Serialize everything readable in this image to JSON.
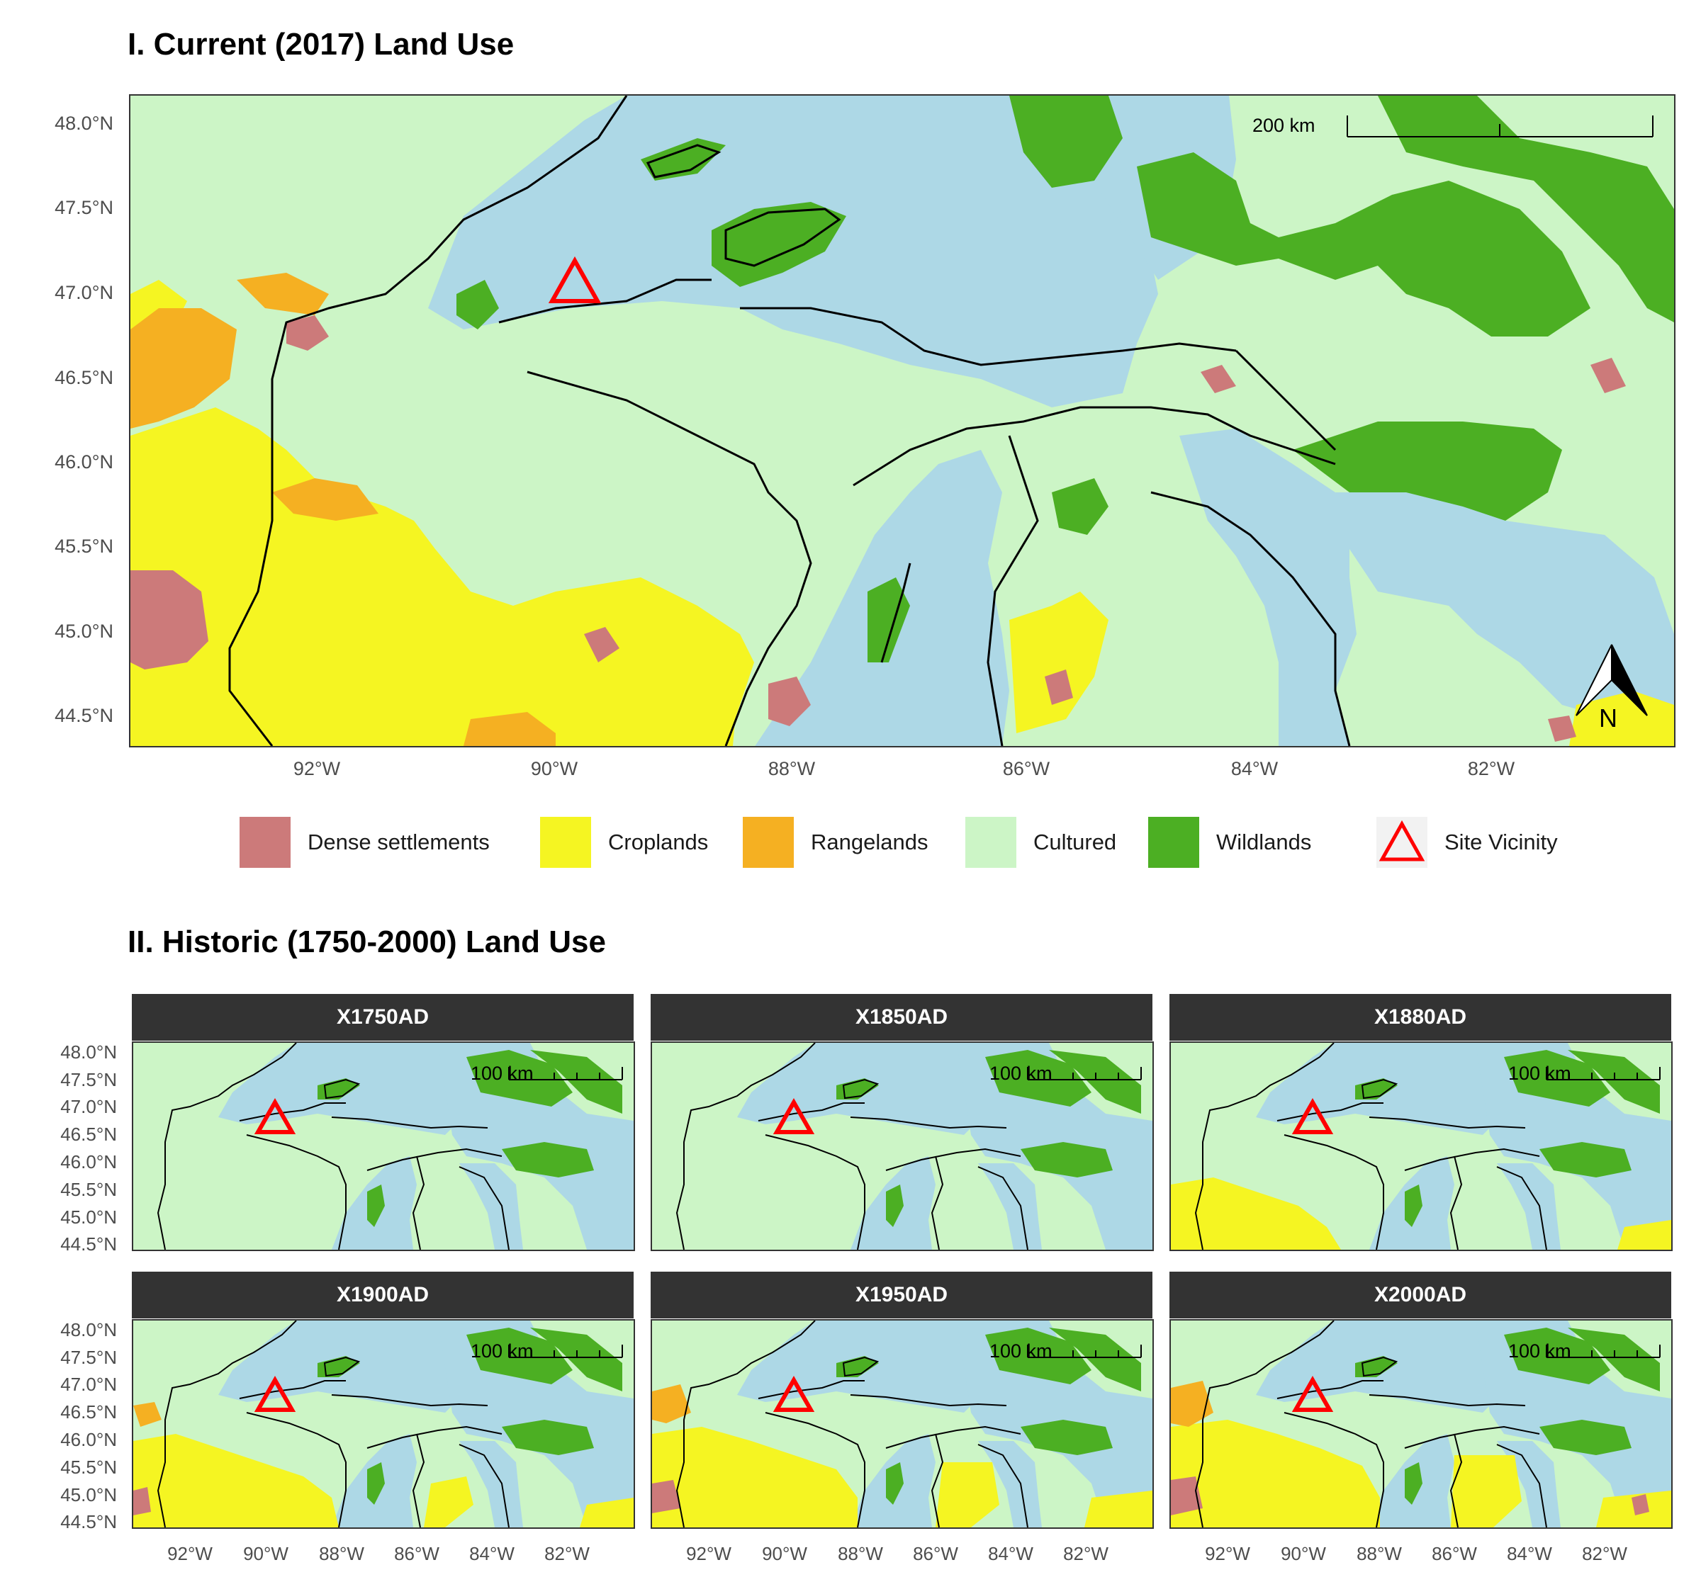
{
  "colors": {
    "dense_settlements": "#cc7a7a",
    "croplands": "#f5f522",
    "rangelands": "#f5b022",
    "cultured": "#ccf5c6",
    "wildlands": "#4caf23",
    "water": "#add8e6",
    "site_marker": "#ff0000",
    "strip_bg": "#333333"
  },
  "main_map": {
    "title": "I. Current (2017) Land Use",
    "y_ticks": [
      "48.0°N",
      "47.5°N",
      "47.0°N",
      "46.5°N",
      "46.0°N",
      "45.5°N",
      "45.0°N",
      "44.5°N"
    ],
    "x_ticks": [
      "92°W",
      "90°W",
      "88°W",
      "86°W",
      "84°W",
      "82°W"
    ],
    "scale_bar_label": "200 km",
    "north_arrow_label": "N"
  },
  "legend": {
    "items": [
      {
        "label": "Dense settlements",
        "color": "#cc7a7a"
      },
      {
        "label": "Croplands",
        "color": "#f5f522"
      },
      {
        "label": "Rangelands",
        "color": "#f5b022"
      },
      {
        "label": "Cultured",
        "color": "#ccf5c6"
      },
      {
        "label": "Wildlands",
        "color": "#4caf23"
      },
      {
        "label": "Site Vicinity",
        "icon": "triangle-outline-icon"
      }
    ]
  },
  "historic": {
    "title": "II. Historic (1750-2000) Land Use",
    "y_ticks": [
      "48.0°N",
      "47.5°N",
      "47.0°N",
      "46.5°N",
      "46.0°N",
      "45.5°N",
      "45.0°N",
      "44.5°N"
    ],
    "x_ticks": [
      "92°W",
      "90°W",
      "88°W",
      "86°W",
      "84°W",
      "82°W"
    ],
    "scale_bar_label": "100 km",
    "panels": [
      {
        "label": "X1750AD"
      },
      {
        "label": "X1850AD"
      },
      {
        "label": "X1880AD"
      },
      {
        "label": "X1900AD"
      },
      {
        "label": "X1950AD"
      },
      {
        "label": "X2000AD"
      }
    ]
  }
}
